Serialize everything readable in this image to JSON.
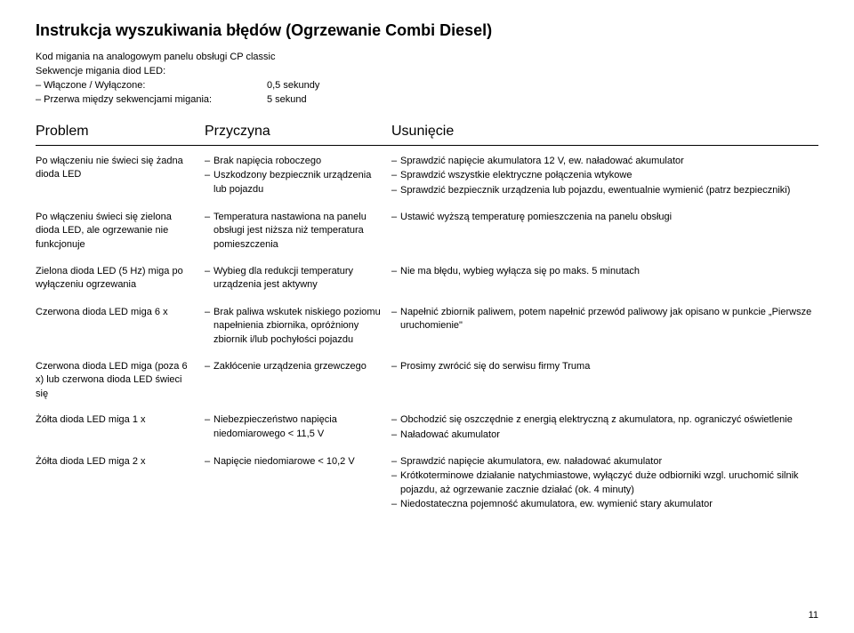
{
  "title": "Instrukcja wyszukiwania błędów (Ogrzewanie Combi Diesel)",
  "intro": {
    "line1": "Kod migania na analogowym panelu obsługi CP classic",
    "line2": "Sekwencje migania diod LED:",
    "r1_label": "– Włączone / Wyłączone:",
    "r1_val": "0,5 sekundy",
    "r2_label": "– Przerwa między sekwencjami migania:",
    "r2_val": "5   sekund"
  },
  "headers": {
    "c1": "Problem",
    "c2": "Przyczyna",
    "c3": "Usunięcie"
  },
  "rows": [
    {
      "c1": "Po włączeniu nie świeci się żadna dioda LED",
      "c2": [
        "Brak napięcia roboczego",
        "Uszkodzony bezpiecznik urządzenia lub pojazdu"
      ],
      "c3": [
        "Sprawdzić napięcie akumulatora 12 V, ew. naładować akumulator",
        "Sprawdzić wszystkie elektryczne połączenia wtykowe",
        "Sprawdzić bezpiecznik urządzenia lub pojazdu, ewentualnie wymienić (patrz bezpieczniki)"
      ]
    },
    {
      "c1": "Po włączeniu świeci się zielona dioda LED, ale ogrzewanie nie funkcjonuje",
      "c2": [
        "Temperatura nastawiona na panelu obsługi jest niższa niż temperatura pomieszczenia"
      ],
      "c3": [
        "Ustawić wyższą temperaturę pomieszczenia na panelu obsługi"
      ]
    },
    {
      "c1": "Zielona dioda LED (5 Hz) miga po wyłączeniu ogrzewania",
      "c2": [
        "Wybieg dla redukcji temperatury urządzenia jest aktywny"
      ],
      "c3": [
        "Nie ma błędu, wybieg wyłącza się po maks. 5 minutach"
      ]
    },
    {
      "c1": "Czerwona dioda LED miga 6 x",
      "c2": [
        "Brak paliwa wskutek niskiego poziomu napełnienia zbiornika, opróżniony zbiornik i/lub pochyłości pojazdu"
      ],
      "c3": [
        "Napełnić zbiornik paliwem, potem napełnić przewód paliwowy jak opisano w punkcie „Pierwsze uruchomienie\""
      ]
    },
    {
      "c1": "Czerwona dioda LED miga (poza 6 x) lub czerwona dioda LED świeci się",
      "c2": [
        "Zakłócenie urządzenia grzewczego"
      ],
      "c3": [
        "Prosimy zwrócić się do serwisu firmy Truma"
      ]
    },
    {
      "c1": "Żółta dioda LED miga 1 x",
      "c2": [
        "Niebezpieczeństwo napięcia niedomiarowego < 11,5 V"
      ],
      "c3": [
        "Obchodzić się oszczędnie z energią elektryczną z akumulatora, np. ograniczyć oświetlenie",
        "Naładować akumulator"
      ]
    },
    {
      "c1": "Żółta dioda LED miga 2 x",
      "c2": [
        "Napięcie niedomiarowe < 10,2 V"
      ],
      "c3": [
        "Sprawdzić napięcie akumulatora, ew. naładować akumulator",
        "Krótkoterminowe działanie natychmiastowe, wyłączyć duże odbiorniki wzgl. uruchomić silnik pojazdu, aż ogrzewanie zacznie działać (ok. 4 minuty)",
        "Niedostateczna pojemność akumulatora, ew. wymienić stary akumulator"
      ]
    }
  ],
  "pageNumber": "11"
}
